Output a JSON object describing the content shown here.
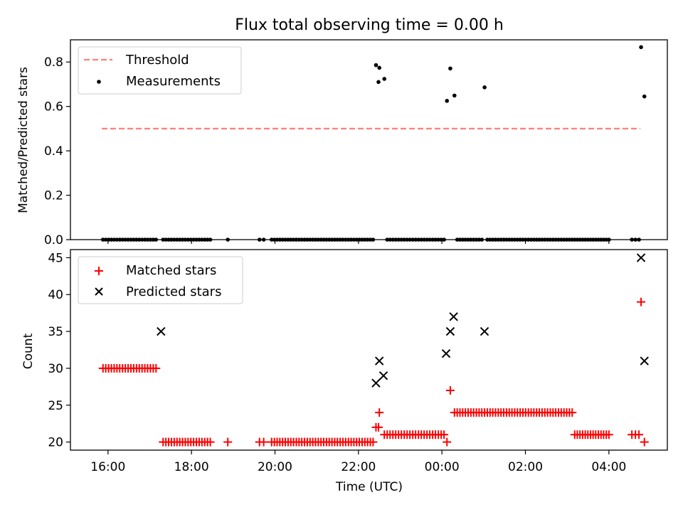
{
  "chart_data": [
    {
      "type": "scatter",
      "title": "Flux total observing time = 0.00 h",
      "ylabel": "Matched/Predicted stars",
      "xlabel": "",
      "ylim": [
        0.0,
        0.9
      ],
      "yticks": [
        0.0,
        0.2,
        0.4,
        0.6,
        0.8
      ],
      "ytick_labels": [
        "0.0",
        "0.2",
        "0.4",
        "0.6",
        "0.8"
      ],
      "legend": {
        "placement": "upper-left",
        "entries": [
          {
            "label": "Threshold",
            "style": "dashed-line",
            "color": "#ff7f7f"
          },
          {
            "label": "Measurements",
            "style": "dot",
            "color": "#000000"
          }
        ]
      },
      "series": [
        {
          "name": "Threshold",
          "kind": "line",
          "x": [
            15.85,
            28.75
          ],
          "y": [
            0.5,
            0.5
          ]
        },
        {
          "name": "Measurements",
          "kind": "scatter",
          "x": [],
          "y": []
        }
      ]
    },
    {
      "type": "scatter",
      "title": "",
      "ylabel": "Count",
      "xlabel": "Time (UTC)",
      "xlim": [
        15.1,
        29.4
      ],
      "ylim": [
        18.9,
        46.1
      ],
      "xticks": [
        16,
        18,
        20,
        22,
        24,
        26,
        28
      ],
      "xtick_labels": [
        "16:00",
        "18:00",
        "20:00",
        "22:00",
        "00:00",
        "02:00",
        "04:00"
      ],
      "yticks": [
        20,
        25,
        30,
        35,
        40,
        45
      ],
      "ytick_labels": [
        "20",
        "25",
        "30",
        "35",
        "40",
        "45"
      ],
      "legend": {
        "placement": "upper-left",
        "entries": [
          {
            "label": "Matched stars",
            "style": "plus",
            "color": "#ff0000"
          },
          {
            "label": "Predicted stars",
            "style": "x",
            "color": "#000000"
          }
        ]
      },
      "series": [
        {
          "name": "Matched stars",
          "kind": "plus",
          "x": [],
          "y": []
        },
        {
          "name": "Predicted stars",
          "kind": "x",
          "x": [
            17.27,
            22.42,
            22.5,
            22.6,
            24.1,
            24.2,
            24.28,
            25.02,
            28.77,
            28.85
          ],
          "y": [
            35,
            28,
            31,
            29,
            32,
            35,
            37,
            35,
            45,
            31
          ]
        }
      ]
    }
  ],
  "colors": {
    "threshold": "#ff7f7f",
    "matched": "#ff0000",
    "predicted": "#000000",
    "measurement": "#000000"
  },
  "segments": [
    {
      "start": 15.88,
      "end": 17.15,
      "n": 20,
      "value": 30
    },
    {
      "start": 17.32,
      "end": 18.45,
      "n": 18,
      "value": 20
    },
    {
      "start": 18.87,
      "end": 18.87,
      "n": 1,
      "value": 20
    },
    {
      "start": 19.63,
      "end": 19.73,
      "n": 2,
      "value": 20
    },
    {
      "start": 19.92,
      "end": 22.35,
      "n": 38,
      "value": 20
    },
    {
      "start": 22.42,
      "end": 22.48,
      "n": 2,
      "value": 22
    },
    {
      "start": 22.5,
      "end": 22.5,
      "n": 1,
      "value": 24
    },
    {
      "start": 22.62,
      "end": 24.05,
      "n": 22,
      "value": 21
    },
    {
      "start": 24.12,
      "end": 24.12,
      "n": 1,
      "value": 20
    },
    {
      "start": 24.2,
      "end": 24.2,
      "n": 1,
      "value": 27
    },
    {
      "start": 24.3,
      "end": 27.12,
      "n": 44,
      "value": 24
    },
    {
      "start": 27.18,
      "end": 28.0,
      "n": 14,
      "value": 21
    },
    {
      "start": 28.55,
      "end": 28.72,
      "n": 3,
      "value": 21
    },
    {
      "start": 28.77,
      "end": 28.77,
      "n": 1,
      "value": 39
    },
    {
      "start": 28.85,
      "end": 28.85,
      "n": 1,
      "value": 20
    }
  ]
}
